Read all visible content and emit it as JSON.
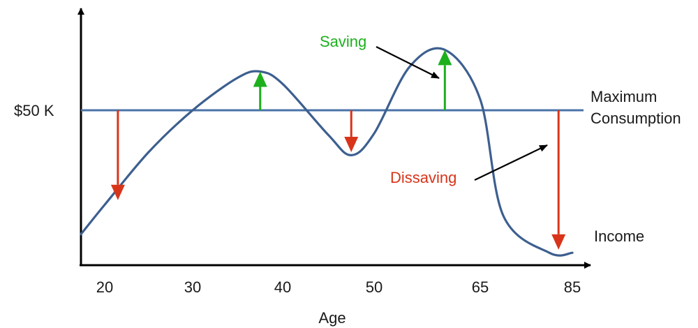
{
  "chart_data": {
    "type": "line",
    "title": "",
    "xlabel": "Age",
    "ylabel": "",
    "x_ticks": [
      "20",
      "30",
      "40",
      "50",
      "65",
      "85"
    ],
    "y_ticks": [
      "$50 K"
    ],
    "series": [
      {
        "name": "Income",
        "points": [
          {
            "x": "17.5",
            "y": 0.2
          },
          {
            "x": "20",
            "y": 0.39
          },
          {
            "x": "25",
            "y": 0.73
          },
          {
            "x": "30",
            "y": 1.0
          },
          {
            "x": "35",
            "y": 1.21
          },
          {
            "x": "37.5",
            "y": 1.25
          },
          {
            "x": "40",
            "y": 1.17
          },
          {
            "x": "45",
            "y": 0.84
          },
          {
            "x": "47.5",
            "y": 0.71
          },
          {
            "x": "50",
            "y": 0.85
          },
          {
            "x": "55",
            "y": 1.28
          },
          {
            "x": "60",
            "y": 1.39
          },
          {
            "x": "65",
            "y": 1.07
          },
          {
            "x": "70",
            "y": 0.32
          },
          {
            "x": "80",
            "y": 0.08
          },
          {
            "x": "85",
            "y": 0.08
          }
        ]
      },
      {
        "name": "Maximum Consumption",
        "constant": 1.0
      }
    ],
    "arrows": [
      {
        "type": "dissaving",
        "x": "21.5",
        "from": 1.0,
        "to": 0.42
      },
      {
        "type": "saving",
        "x": "37.5",
        "from": 1.0,
        "to": 1.25
      },
      {
        "type": "dissaving",
        "x": "47.5",
        "from": 1.0,
        "to": 0.73
      },
      {
        "type": "saving",
        "x": "60",
        "from": 1.0,
        "to": 1.39
      },
      {
        "type": "dissaving",
        "x": "82",
        "from": 1.0,
        "to": 0.1
      }
    ],
    "annotations": {
      "saving": "Saving",
      "dissaving": "Dissaving",
      "max_consumption_line1": "Maximum",
      "max_consumption_line2": "Consumption",
      "income": "Income"
    },
    "colors": {
      "curve": "#3d5f8f",
      "consumption_line": "#4a73a8",
      "saving_arrow": "#1db01d",
      "dissaving_arrow": "#d8341a",
      "saving_text": "#1db01d",
      "dissaving_text": "#d8341a",
      "axis": "#000000"
    }
  }
}
